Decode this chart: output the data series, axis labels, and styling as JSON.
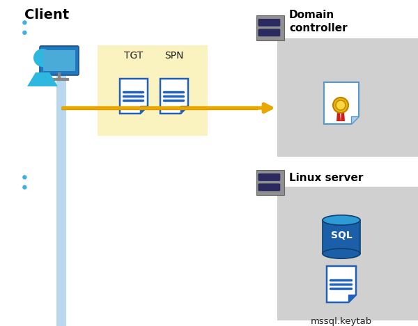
{
  "bg_color": "#ffffff",
  "client_label": "Client",
  "domain_label": "Domain\ncontroller",
  "linux_label": "Linux server",
  "tgt_label": "TGT",
  "spn_label": "SPN",
  "keytab_label": "mssql.keytab",
  "arrow_color": "#E8A800",
  "arrow_color2": "#C88000",
  "box_tgt_color": "#FAF3C0",
  "domain_box_color": "#D0D0D0",
  "linux_box_color": "#D0D0D0",
  "client_line_color": "#B8D8F0",
  "server_body_color": "#909090",
  "server_slot_color": "#2A2A60",
  "server_light_color": "#40B0E0"
}
